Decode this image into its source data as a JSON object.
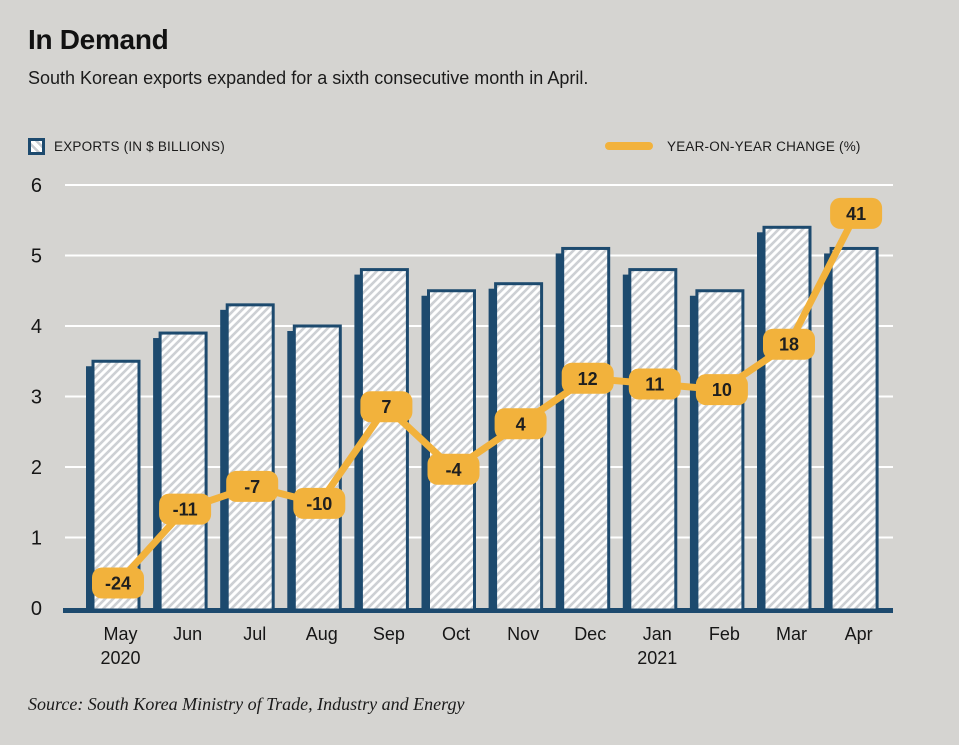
{
  "header": {
    "title": "In Demand",
    "subtitle": "South Korean exports expanded for a sixth consecutive month in April."
  },
  "legend": {
    "bars_label": "EXPORTS (IN $ BILLIONS)",
    "line_label": "YEAR-ON-YEAR CHANGE (%)"
  },
  "source": "Source: South Korea Ministry of Trade, Industry and Energy",
  "colors": {
    "background": "#d5d4d1",
    "navy": "#1d4a6e",
    "yellow": "#f2b23c",
    "grid": "#ffffff",
    "text": "#161616",
    "hatch": "#cdd0d4",
    "label_text": "#1f1f1f"
  },
  "chart_data": {
    "type": "bar+line",
    "categories": [
      "May",
      "Jun",
      "Jul",
      "Aug",
      "Sep",
      "Oct",
      "Nov",
      "Dec",
      "Jan",
      "Feb",
      "Mar",
      "Apr"
    ],
    "year_markers": [
      {
        "index": 0,
        "label": "2020"
      },
      {
        "index": 8,
        "label": "2021"
      }
    ],
    "series": [
      {
        "name": "EXPORTS (IN $ BILLIONS)",
        "type": "bar",
        "values": [
          3.5,
          3.9,
          4.3,
          4.0,
          4.8,
          4.5,
          4.6,
          5.1,
          4.8,
          4.5,
          5.4,
          5.1
        ]
      },
      {
        "name": "YEAR-ON-YEAR CHANGE (%)",
        "type": "line",
        "values": [
          -24,
          -11,
          -7,
          -10,
          7,
          -4,
          4,
          12,
          11,
          10,
          18,
          41
        ],
        "data_labels": true
      }
    ],
    "yticks": [
      0,
      1,
      2,
      3,
      4,
      5,
      6
    ],
    "ylim": [
      0,
      6
    ],
    "line_axis_hidden": true,
    "grid": true,
    "legend_position": "top"
  }
}
